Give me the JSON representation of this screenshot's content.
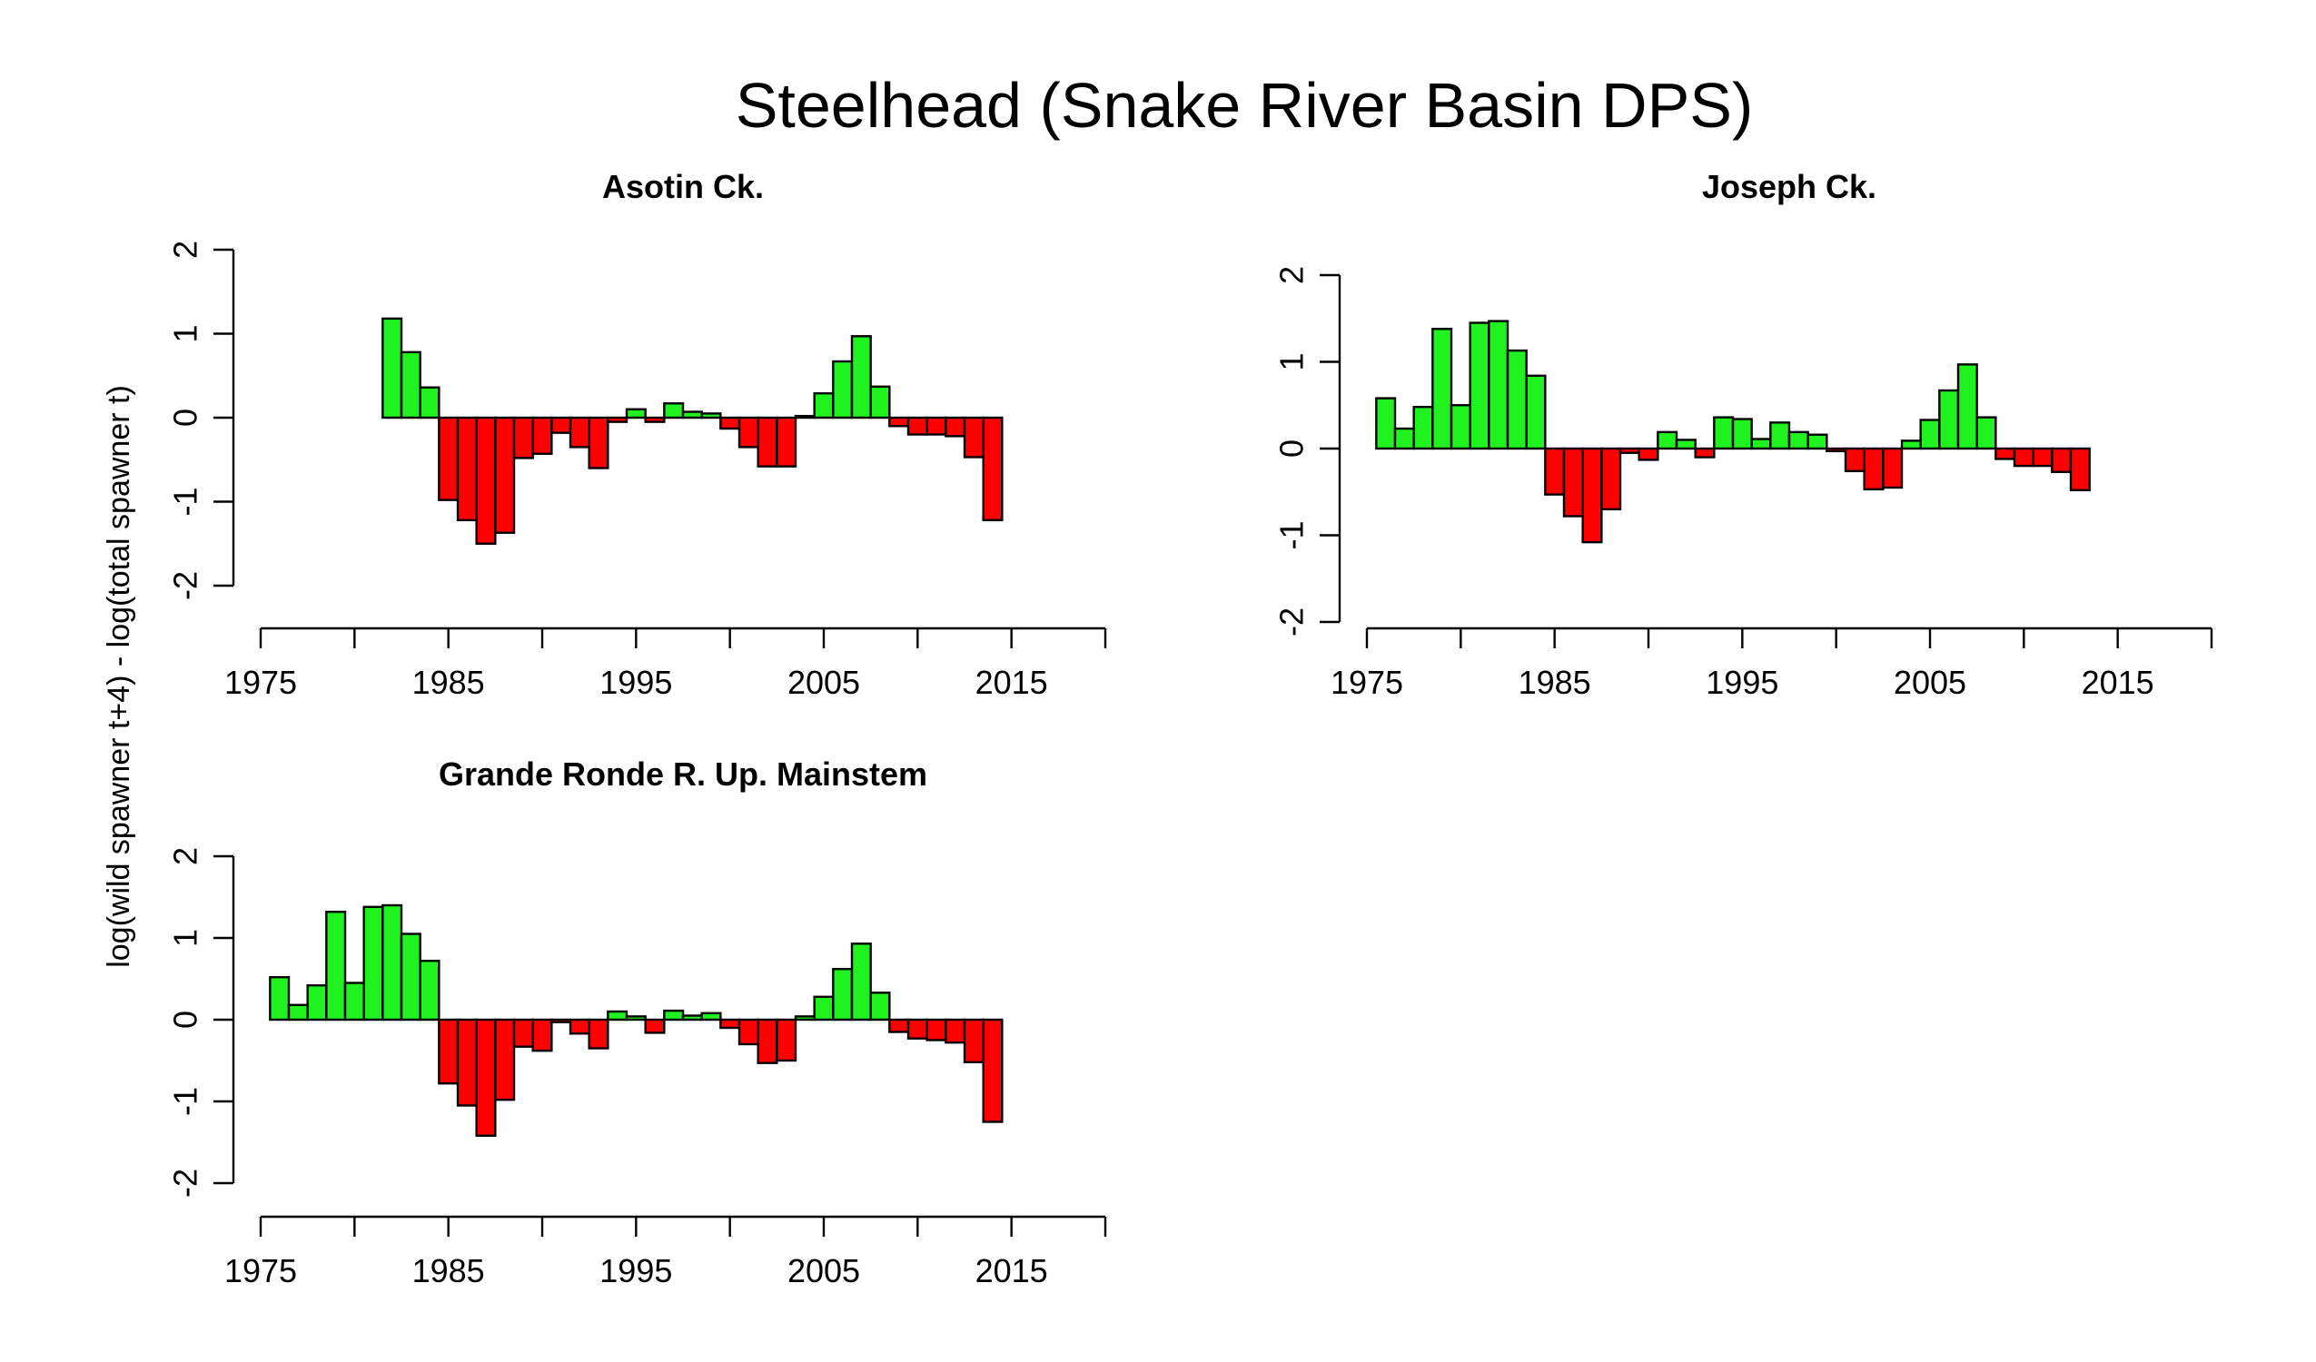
{
  "figure": {
    "title": "Steelhead (Snake River Basin DPS)",
    "ylabel": "log(wild spawner t+4) - log(total spawner t)",
    "colors": {
      "positive": "#1ff21f",
      "negative": "#ff0000",
      "outline": "#000000"
    }
  },
  "chart_data": [
    {
      "type": "bar",
      "title": "Asotin Ck.",
      "xlim": [
        1975,
        2020
      ],
      "ylim": [
        -2,
        2
      ],
      "x_ticks": [
        1975,
        1980,
        1985,
        1990,
        1995,
        2000,
        2005,
        2010,
        2015,
        2020
      ],
      "x_tick_labels": [
        "1975",
        "",
        "1985",
        "",
        "1995",
        "",
        "2005",
        "",
        "2015",
        ""
      ],
      "y_ticks": [
        -2,
        -1,
        0,
        1,
        2
      ],
      "y_tick_labels": [
        "-2",
        "-1",
        "0",
        "1",
        "2"
      ],
      "x": [
        1982,
        1983,
        1984,
        1985,
        1986,
        1987,
        1988,
        1989,
        1990,
        1991,
        1992,
        1993,
        1994,
        1995,
        1996,
        1997,
        1998,
        1999,
        2000,
        2001,
        2002,
        2003,
        2004,
        2005,
        2006,
        2007,
        2008,
        2009,
        2010,
        2011,
        2012,
        2013,
        2014
      ],
      "values": [
        1.18,
        0.78,
        0.36,
        -0.98,
        -1.22,
        -1.5,
        -1.37,
        -0.48,
        -0.43,
        -0.18,
        -0.35,
        -0.6,
        -0.05,
        0.1,
        -0.05,
        0.17,
        0.07,
        0.05,
        -0.13,
        -0.35,
        -0.58,
        -0.58,
        0.02,
        0.29,
        0.67,
        0.97,
        0.37,
        -0.1,
        -0.2,
        -0.2,
        -0.22,
        -0.47,
        -1.22
      ]
    },
    {
      "type": "bar",
      "title": "Joseph Ck.",
      "xlim": [
        1975,
        2020
      ],
      "ylim": [
        -2,
        2
      ],
      "x_ticks": [
        1975,
        1980,
        1985,
        1990,
        1995,
        2000,
        2005,
        2010,
        2015,
        2020
      ],
      "x_tick_labels": [
        "1975",
        "",
        "1985",
        "",
        "1995",
        "",
        "2005",
        "",
        "2015",
        ""
      ],
      "y_ticks": [
        -2,
        -1,
        0,
        1,
        2
      ],
      "y_tick_labels": [
        "-2",
        "-1",
        "0",
        "1",
        "2"
      ],
      "x": [
        1976,
        1977,
        1978,
        1979,
        1980,
        1981,
        1982,
        1983,
        1984,
        1985,
        1986,
        1987,
        1988,
        1989,
        1990,
        1991,
        1992,
        1993,
        1994,
        1995,
        1996,
        1997,
        1998,
        1999,
        2000,
        2001,
        2002,
        2003,
        2004,
        2005,
        2006,
        2007,
        2008,
        2009,
        2010,
        2011,
        2012,
        2013
      ],
      "values": [
        0.58,
        0.23,
        0.48,
        1.38,
        0.5,
        1.45,
        1.47,
        1.13,
        0.84,
        -0.53,
        -0.78,
        -1.08,
        -0.7,
        -0.05,
        -0.13,
        0.19,
        0.1,
        -0.1,
        0.36,
        0.34,
        0.11,
        0.3,
        0.19,
        0.16,
        -0.03,
        -0.26,
        -0.47,
        -0.45,
        0.09,
        0.33,
        0.67,
        0.97,
        0.36,
        -0.12,
        -0.2,
        -0.2,
        -0.27,
        -0.48
      ]
    },
    {
      "type": "bar",
      "title": "Grande Ronde R. Up. Mainstem",
      "xlim": [
        1975,
        2020
      ],
      "ylim": [
        -2,
        2
      ],
      "x_ticks": [
        1975,
        1980,
        1985,
        1990,
        1995,
        2000,
        2005,
        2010,
        2015,
        2020
      ],
      "x_tick_labels": [
        "1975",
        "",
        "1985",
        "",
        "1995",
        "",
        "2005",
        "",
        "2015",
        ""
      ],
      "y_ticks": [
        -2,
        -1,
        0,
        1,
        2
      ],
      "y_tick_labels": [
        "-2",
        "-1",
        "0",
        "1",
        "2"
      ],
      "x": [
        1976,
        1977,
        1978,
        1979,
        1980,
        1981,
        1982,
        1983,
        1984,
        1985,
        1986,
        1987,
        1988,
        1989,
        1990,
        1991,
        1992,
        1993,
        1994,
        1995,
        1996,
        1997,
        1998,
        1999,
        2000,
        2001,
        2002,
        2003,
        2004,
        2005,
        2006,
        2007,
        2008,
        2009,
        2010,
        2011,
        2012,
        2013,
        2014
      ],
      "values": [
        0.52,
        0.18,
        0.42,
        1.32,
        0.45,
        1.38,
        1.4,
        1.05,
        0.72,
        -0.78,
        -1.05,
        -1.42,
        -0.98,
        -0.33,
        -0.38,
        -0.03,
        -0.17,
        -0.35,
        0.1,
        0.04,
        -0.16,
        0.11,
        0.05,
        0.08,
        -0.1,
        -0.3,
        -0.53,
        -0.5,
        0.04,
        0.28,
        0.62,
        0.93,
        0.33,
        -0.15,
        -0.23,
        -0.25,
        -0.28,
        -0.52,
        -1.25
      ]
    }
  ]
}
